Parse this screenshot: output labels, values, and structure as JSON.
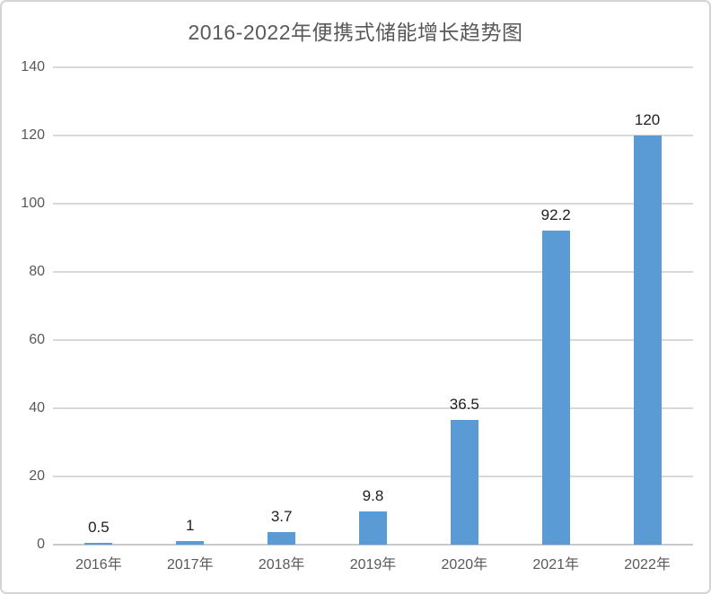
{
  "chart_data": {
    "type": "bar",
    "title": "2016-2022年便携式储能增长趋势图",
    "categories": [
      "2016年",
      "2017年",
      "2018年",
      "2019年",
      "2020年",
      "2021年",
      "2022年"
    ],
    "values": [
      0.5,
      1,
      3.7,
      9.8,
      36.5,
      92.2,
      120
    ],
    "value_labels": [
      "0.5",
      "1",
      "3.7",
      "9.8",
      "36.5",
      "92.2",
      "120"
    ],
    "xlabel": "",
    "ylabel": "",
    "ylim": [
      0,
      140
    ],
    "yticks": [
      0,
      20,
      40,
      60,
      80,
      100,
      120,
      140
    ],
    "grid": "horizontal-only",
    "legend": "none",
    "colors": {
      "bar": "#5B9BD5",
      "gridline": "#D9D9D9",
      "axis_line": "#C9C9C9",
      "title_text": "#595959",
      "tick_text": "#595959",
      "value_text": "#1F1F1F",
      "background": "#FFFFFF",
      "frame_border": "#D4D4D4"
    }
  }
}
